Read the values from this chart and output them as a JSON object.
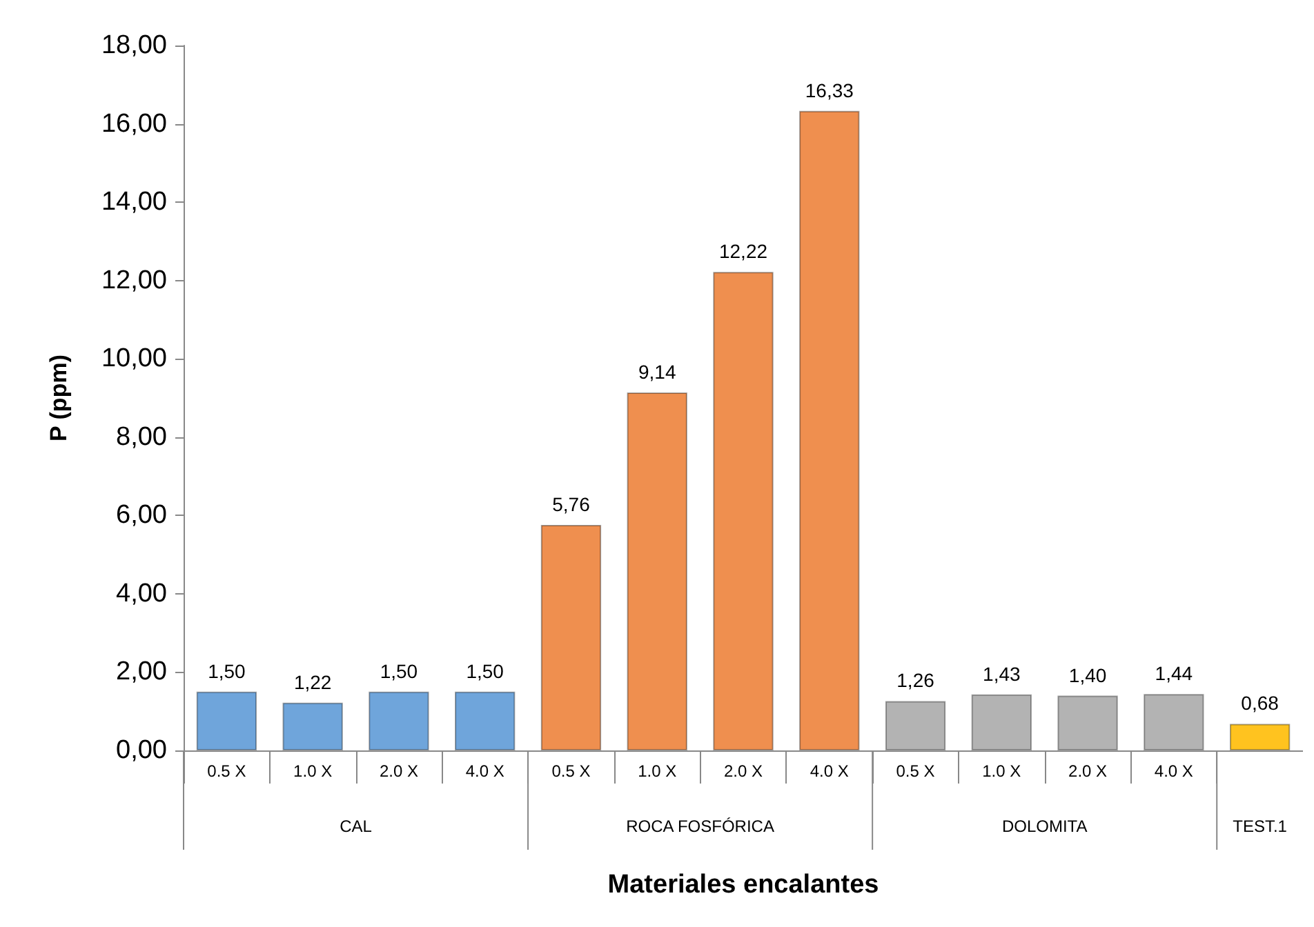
{
  "chart_data": {
    "type": "bar",
    "xlabel": "Materiales encalantes",
    "ylabel": "P (ppm)",
    "categories": [
      "0.5 X",
      "1.0 X",
      "2.0 X",
      "4.0 X",
      "0.5 X",
      "1.0 X",
      "2.0 X",
      "4.0 X",
      "0.5 X",
      "1.0 X",
      "2.0 X",
      "4.0 X",
      null
    ],
    "values": [
      1.5,
      1.22,
      1.5,
      1.5,
      5.76,
      9.14,
      12.22,
      16.33,
      1.26,
      1.43,
      1.4,
      1.44,
      0.68
    ],
    "value_labels": [
      "1,50",
      "1,22",
      "1,50",
      "1,50",
      "5,76",
      "9,14",
      "12,22",
      "16,33",
      "1,26",
      "1,43",
      "1,40",
      "1,44",
      "0,68"
    ],
    "colors": [
      "#6fa5db",
      "#6fa5db",
      "#6fa5db",
      "#6fa5db",
      "#ef8f4f",
      "#ef8f4f",
      "#ef8f4f",
      "#ef8f4f",
      "#b3b3b3",
      "#b3b3b3",
      "#b3b3b3",
      "#b3b3b3",
      "#ffc31f"
    ],
    "annotations": [
      "CAL",
      "ROCA FOSFÓRICA",
      "DOLOMITA",
      "TEST.1"
    ],
    "ylim": [
      0,
      18
    ],
    "yticks": [
      {
        "value": 0,
        "label": "0,00"
      },
      {
        "value": 2,
        "label": "2,00"
      },
      {
        "value": 4,
        "label": "4,00"
      },
      {
        "value": 6,
        "label": "6,00"
      },
      {
        "value": 8,
        "label": "8,00"
      },
      {
        "value": 10,
        "label": "10,00"
      },
      {
        "value": 12,
        "label": "12,00"
      },
      {
        "value": 14,
        "label": "14,00"
      },
      {
        "value": 16,
        "label": "16,00"
      },
      {
        "value": 18,
        "label": "18,00"
      }
    ],
    "grid": false
  }
}
